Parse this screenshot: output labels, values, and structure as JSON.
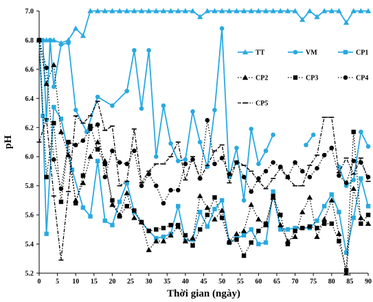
{
  "chart_data": {
    "type": "line",
    "title": "",
    "xlabel": "Thời gian (ngày)",
    "ylabel": "pH",
    "xlim": [
      0,
      90
    ],
    "ylim": [
      5.2,
      7.0
    ],
    "x_ticks": [
      0,
      5,
      10,
      15,
      20,
      25,
      30,
      35,
      40,
      45,
      50,
      55,
      60,
      65,
      70,
      75,
      80,
      85,
      90
    ],
    "y_ticks": [
      5.2,
      5.4,
      5.6,
      5.8,
      6.0,
      6.2,
      6.4,
      6.6,
      6.8,
      7.0
    ],
    "grid": false,
    "legend_position": "right",
    "series": [
      {
        "name": "TT",
        "color": "#29a9e0",
        "style": "solid",
        "marker": "triangle",
        "x": [
          0,
          2,
          4,
          6,
          8,
          10,
          12,
          14,
          16,
          18,
          20,
          22,
          24,
          26,
          28,
          30,
          32,
          34,
          36,
          38,
          40,
          42,
          44,
          46,
          48,
          50,
          52,
          54,
          56,
          58,
          60,
          62,
          64,
          66,
          68,
          70,
          72,
          74,
          76,
          78,
          80,
          82,
          84,
          86,
          88,
          90
        ],
        "y": [
          6.8,
          6.8,
          6.8,
          6.78,
          6.8,
          6.88,
          6.83,
          7.0,
          7.0,
          7.0,
          7.0,
          7.0,
          7.0,
          7.0,
          7.0,
          7.0,
          7.0,
          7.0,
          7.0,
          7.0,
          7.0,
          7.0,
          6.96,
          7.0,
          7.0,
          7.0,
          7.0,
          7.0,
          7.0,
          7.0,
          7.0,
          7.0,
          7.0,
          7.0,
          7.0,
          7.0,
          6.94,
          7.0,
          6.96,
          7.0,
          7.0,
          7.0,
          6.92,
          7.0,
          7.0,
          7.0
        ]
      },
      {
        "name": "VM",
        "color": "#29a9e0",
        "style": "solid",
        "marker": "circle",
        "segments": [
          {
            "x": [
              0,
              1,
              2,
              3,
              4,
              6,
              8,
              10,
              13,
              16,
              20,
              24,
              26,
              28,
              30,
              32,
              34,
              36,
              38,
              40,
              42,
              44,
              46,
              48,
              50,
              52,
              54,
              56,
              58,
              60,
              62,
              64
            ],
            "y": [
              6.8,
              6.8,
              6.25,
              6.8,
              6.48,
              6.77,
              6.78,
              6.32,
              6.17,
              6.41,
              6.35,
              6.45,
              6.73,
              6.33,
              6.73,
              6.0,
              6.35,
              6.09,
              5.97,
              5.98,
              6.31,
              6.1,
              5.93,
              6.32,
              6.88,
              5.86,
              6.06,
              5.7,
              6.19,
              5.95,
              6.04,
              6.15
            ]
          },
          {
            "x": [
              73,
              75
            ],
            "y": [
              6.08,
              6.15
            ]
          },
          {
            "x": [
              82,
              84,
              86,
              88,
              90
            ],
            "y": [
              5.93,
              5.8,
              5.84,
              6.17,
              6.07
            ]
          }
        ]
      },
      {
        "name": "CP1",
        "color": "#29a9e0",
        "style": "solid",
        "marker": "square",
        "x": [
          0,
          1,
          2,
          4,
          6,
          9,
          12,
          14,
          16,
          18,
          20,
          22,
          24,
          26,
          28,
          30,
          32,
          34,
          36,
          38,
          40,
          42,
          44,
          46,
          48,
          50,
          52,
          54,
          56,
          58,
          60,
          62,
          64,
          66,
          68,
          70,
          72,
          74,
          76,
          78,
          80,
          82,
          84,
          86,
          88,
          90
        ],
        "y": [
          6.8,
          6.28,
          5.47,
          6.34,
          6.26,
          5.91,
          5.65,
          5.59,
          5.97,
          5.56,
          5.53,
          5.69,
          5.82,
          5.62,
          5.55,
          5.49,
          5.44,
          5.45,
          5.47,
          5.66,
          5.42,
          5.43,
          5.62,
          5.52,
          5.64,
          5.7,
          5.41,
          5.44,
          5.46,
          5.5,
          5.4,
          5.41,
          5.76,
          5.5,
          5.5,
          5.51,
          5.51,
          5.51,
          5.56,
          5.66,
          5.74,
          5.62,
          5.34,
          5.58,
          5.85,
          5.66
        ]
      },
      {
        "name": "CP2",
        "color": "#000000",
        "style": "dotted",
        "marker": "triangle",
        "x": [
          0,
          2,
          4,
          6,
          8,
          10,
          12,
          14,
          16,
          18,
          20,
          22,
          24,
          26,
          28,
          30,
          32,
          34,
          36,
          38,
          40,
          42,
          44,
          46,
          48,
          50,
          52,
          54,
          56,
          58,
          60,
          62,
          64,
          66,
          68,
          70,
          72,
          74,
          76,
          78,
          80,
          82,
          84,
          86,
          88,
          90
        ],
        "y": [
          6.8,
          6.5,
          6.63,
          6.17,
          6.01,
          5.7,
          5.82,
          6.0,
          6.1,
          5.97,
          5.67,
          5.6,
          5.75,
          5.58,
          5.55,
          5.36,
          5.42,
          5.42,
          5.46,
          5.52,
          5.42,
          5.44,
          5.73,
          5.65,
          5.57,
          5.63,
          5.42,
          5.47,
          5.49,
          5.67,
          5.57,
          5.53,
          5.72,
          5.53,
          5.42,
          5.45,
          5.62,
          5.72,
          5.45,
          5.57,
          5.7,
          5.47,
          5.2,
          5.78,
          5.58,
          5.54
        ]
      },
      {
        "name": "CP3",
        "color": "#000000",
        "style": "dotted",
        "marker": "square",
        "x": [
          0,
          2,
          4,
          6,
          8,
          10,
          12,
          14,
          16,
          18,
          20,
          22,
          24,
          26,
          28,
          30,
          32,
          34,
          36,
          38,
          40,
          42,
          44,
          46,
          48,
          50,
          52,
          54,
          56,
          58,
          60,
          62,
          64,
          66,
          68,
          70,
          72,
          74,
          76,
          78,
          80,
          82,
          84,
          86,
          88,
          90
        ],
        "y": [
          6.8,
          5.86,
          6.23,
          5.69,
          6.1,
          5.68,
          5.87,
          6.21,
          6.05,
          5.95,
          5.7,
          5.59,
          5.66,
          5.63,
          5.55,
          5.49,
          5.5,
          5.51,
          5.53,
          5.53,
          5.46,
          5.39,
          5.5,
          5.6,
          5.72,
          5.58,
          5.41,
          5.43,
          5.32,
          5.41,
          5.49,
          5.54,
          5.73,
          5.6,
          5.4,
          5.49,
          5.51,
          5.52,
          5.51,
          5.54,
          5.54,
          5.42,
          5.22,
          6.17,
          5.54,
          5.6
        ]
      },
      {
        "name": "CP4",
        "color": "#000000",
        "style": "dotted",
        "marker": "circle",
        "x": [
          0,
          2,
          4,
          6,
          8,
          10,
          12,
          14,
          16,
          18,
          20,
          22,
          24,
          26,
          28,
          30,
          32,
          34,
          36,
          38,
          40,
          42,
          44,
          46,
          48,
          50,
          52,
          54,
          56,
          58,
          60,
          62,
          64,
          66,
          68,
          70,
          72,
          74,
          76,
          78,
          80,
          82,
          84,
          86,
          88,
          90
        ],
        "y": [
          6.8,
          6.61,
          5.98,
          5.78,
          6.1,
          6.08,
          6.11,
          6.19,
          6.22,
          5.86,
          6.04,
          5.96,
          5.95,
          6.04,
          5.8,
          5.88,
          5.8,
          5.68,
          5.77,
          5.77,
          5.95,
          5.98,
          5.85,
          6.25,
          5.95,
          5.99,
          5.88,
          5.96,
          5.86,
          5.76,
          5.85,
          5.9,
          5.96,
          5.93,
          5.86,
          5.96,
          5.9,
          5.86,
          5.92,
          6.01,
          6.06,
          5.87,
          5.82,
          5.97,
          5.96,
          5.86
        ]
      },
      {
        "name": "CP5",
        "color": "#000000",
        "style": "dashdot",
        "marker": "dash",
        "x": [
          0,
          2,
          4,
          6,
          8,
          10,
          12,
          14,
          16,
          18,
          20,
          22,
          24,
          26,
          28,
          30,
          32,
          34,
          36,
          38,
          40,
          42,
          44,
          46,
          48,
          50,
          52,
          54,
          56,
          58,
          60,
          62,
          64,
          66,
          68,
          70,
          72,
          74,
          76,
          78,
          80,
          82,
          84,
          86,
          88,
          90
        ],
        "y": [
          6.1,
          6.26,
          5.73,
          5.29,
          5.76,
          6.28,
          6.23,
          6.28,
          6.38,
          6.18,
          6.21,
          5.8,
          5.83,
          6.19,
          5.82,
          5.9,
          5.95,
          5.95,
          6.0,
          6.1,
          5.84,
          6.0,
          5.85,
          5.94,
          6.04,
          6.08,
          5.82,
          5.97,
          5.94,
          5.9,
          5.83,
          5.78,
          5.85,
          5.92,
          5.85,
          5.8,
          5.8,
          5.94,
          6.01,
          6.27,
          6.27,
          5.89,
          5.99,
          5.88,
          5.99,
          5.83
        ]
      }
    ]
  }
}
